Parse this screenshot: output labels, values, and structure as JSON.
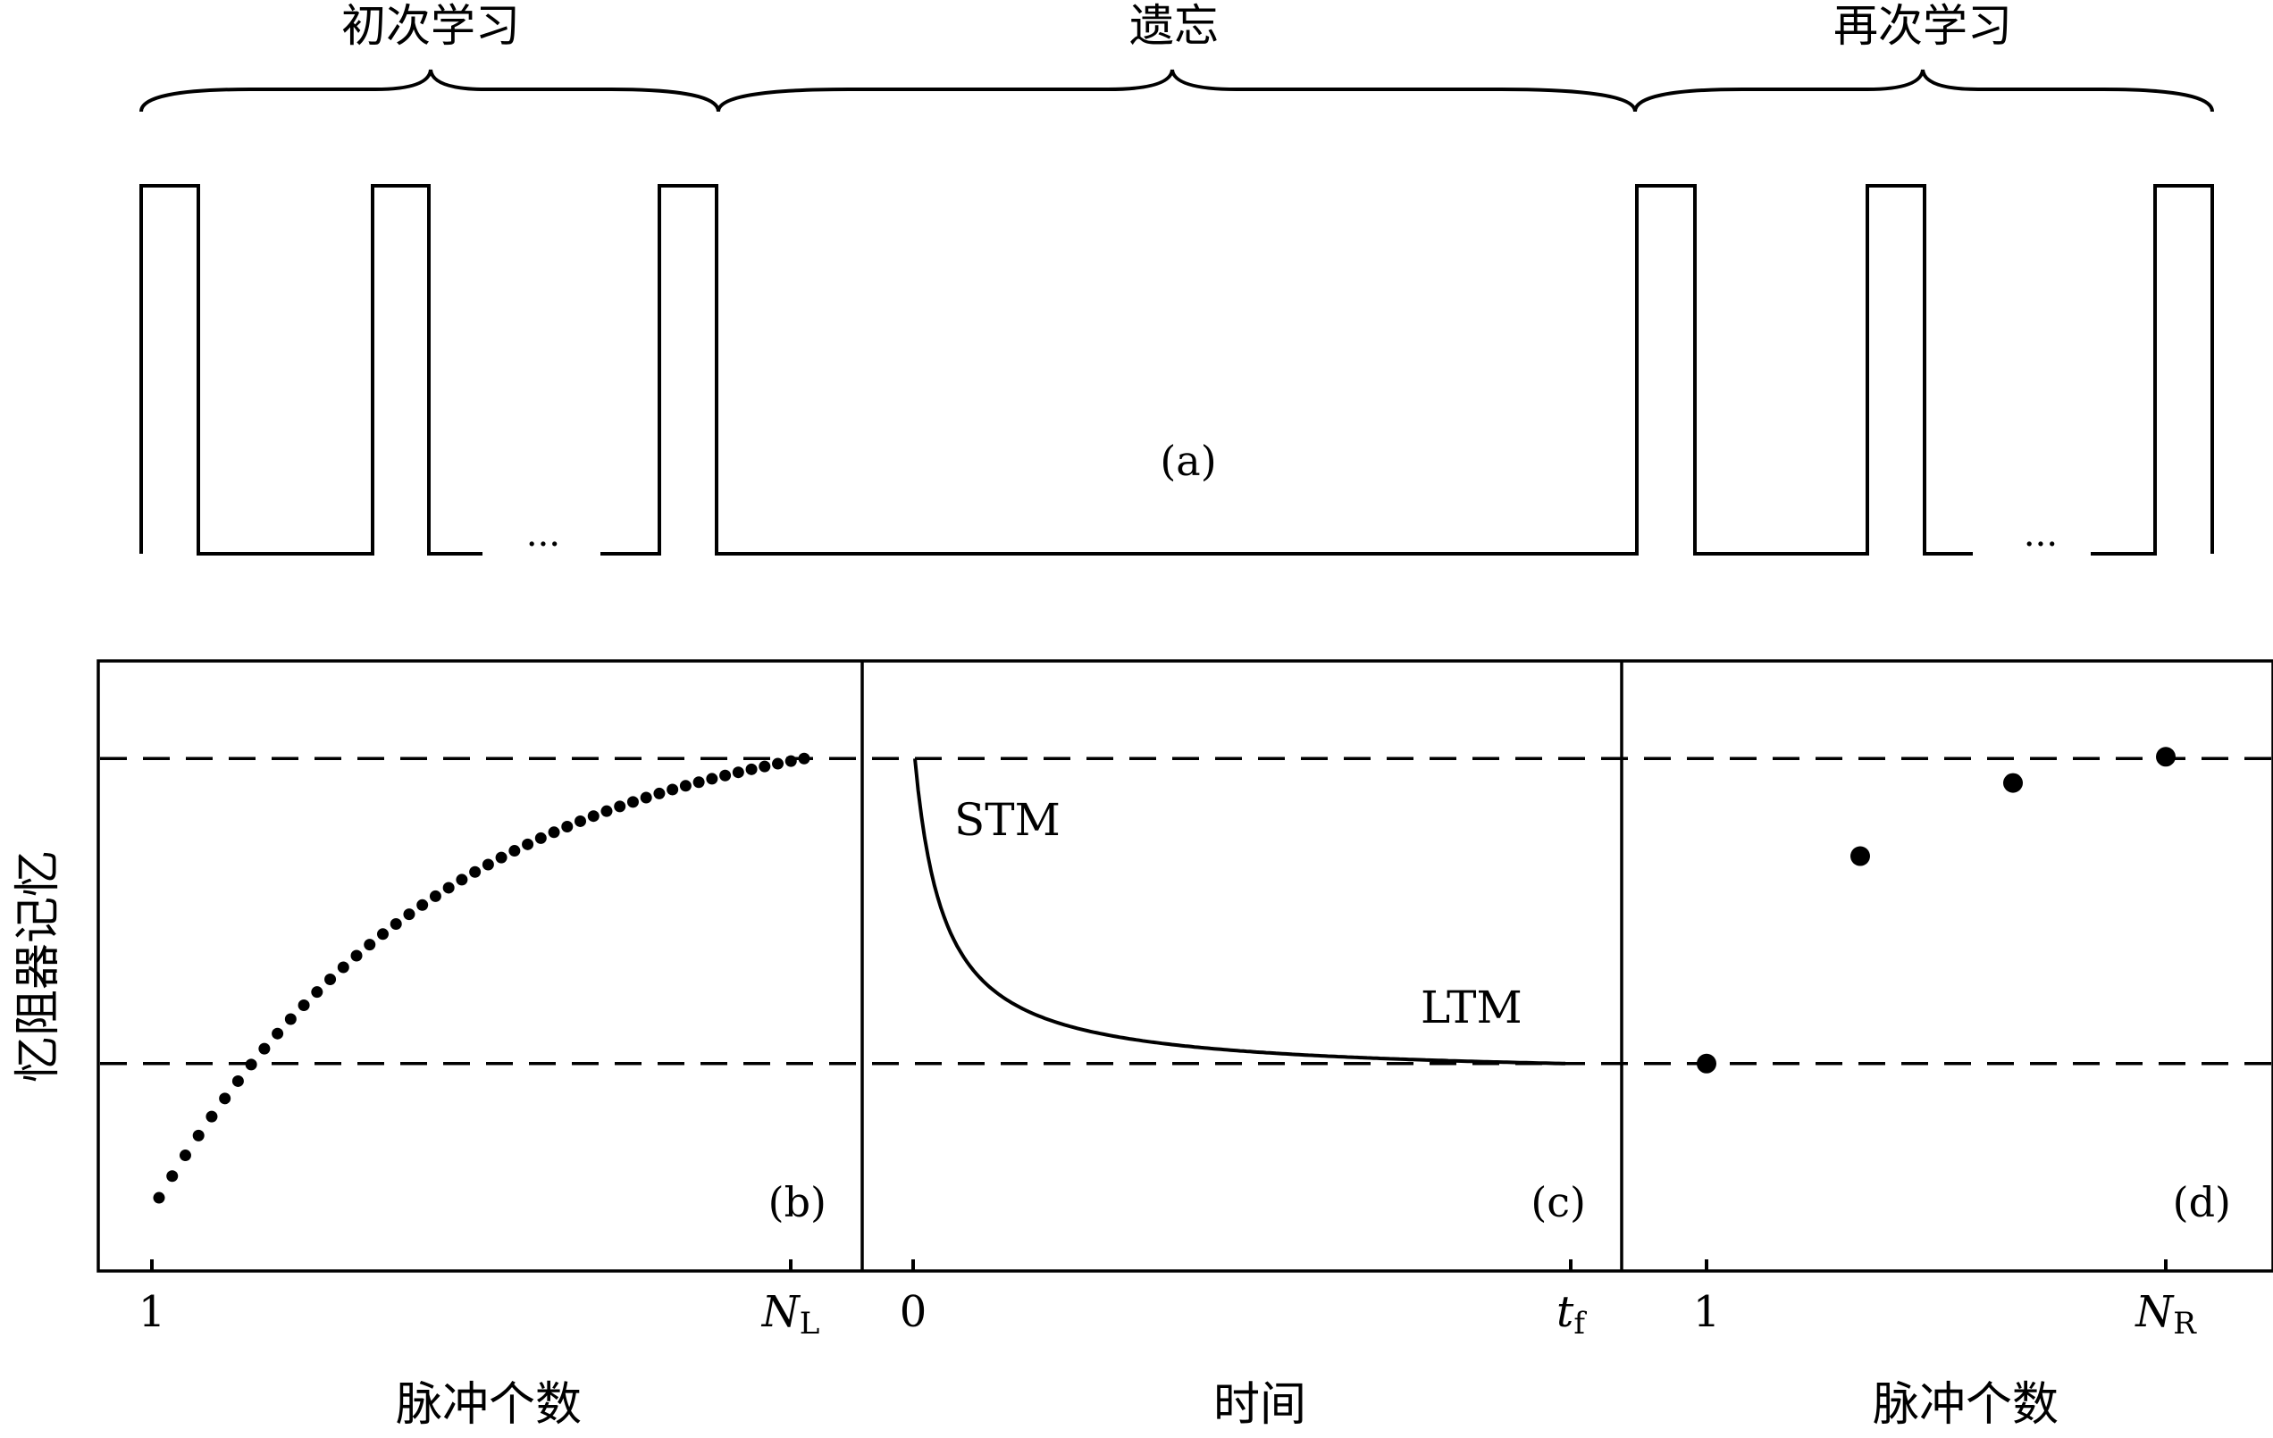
{
  "phases": {
    "learning": "初次学习",
    "forgetting": "遗忘",
    "relearning": "再次学习"
  },
  "ellipsis": "···",
  "panels": {
    "a": {
      "label": "(a)"
    },
    "b": {
      "label": "(b)",
      "tick_start": "1",
      "tick_end_main": "N",
      "tick_end_sub": "L",
      "xlabel": "脉冲个数"
    },
    "c": {
      "label": "(c)",
      "tick_start": "0",
      "tick_end_main": "t",
      "tick_end_sub": "f",
      "xlabel": "时间",
      "stm": "STM",
      "ltm": "LTM"
    },
    "d": {
      "label": "(d)",
      "tick_start": "1",
      "tick_end_main": "N",
      "tick_end_sub": "R",
      "xlabel": "脉冲个数"
    }
  },
  "ylabel": "忆阻器记忆",
  "chart_data": {
    "type": "scatter",
    "ylim": [
      0,
      1
    ],
    "levels": {
      "upper": 0.84,
      "lower": 0.34
    },
    "learning_curve": {
      "points": 50,
      "start": 0.12,
      "end": 0.84,
      "rate": 2.2
    },
    "forgetting_curve": {
      "start": 0.84,
      "asymptote": 0.34
    },
    "relearning_points": [
      0.34,
      0.68,
      0.8,
      0.84
    ]
  }
}
